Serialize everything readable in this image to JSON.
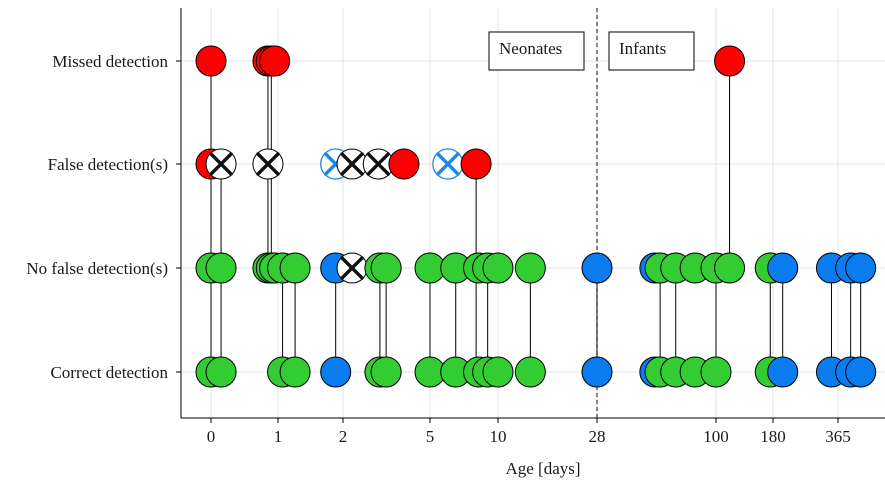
{
  "chart_data": {
    "type": "scatter",
    "title": "",
    "xlabel": "Age [days]",
    "ylabel": "",
    "x_scale": "pseudo-log",
    "x_ticks": [
      "0",
      "1",
      "2",
      "5",
      "10",
      "28",
      "100",
      "180",
      "365"
    ],
    "categories": [
      "Missed detection",
      "False detection(s)",
      "No false detection(s)",
      "Correct detection"
    ],
    "legend": "none",
    "grid": true,
    "colors": {
      "red": "#ff0000",
      "green": "#33cc33",
      "blue": "#0a7cf0",
      "white": "#ffffff",
      "cross": "#111111",
      "blue_cross": "#1e88e5"
    },
    "annotations": [
      {
        "text": "Neonates"
      },
      {
        "text": "Infants"
      }
    ],
    "reference_line": {
      "x": 28,
      "style": "dashed"
    },
    "points": [
      {
        "x": 0,
        "category": "Missed detection",
        "color": "red"
      },
      {
        "x": 0.85,
        "category": "Missed detection",
        "color": "red"
      },
      {
        "x": 0.9,
        "category": "Missed detection",
        "color": "red"
      },
      {
        "x": 0.95,
        "category": "Missed detection",
        "color": "red"
      },
      {
        "x": 115,
        "category": "Missed detection",
        "color": "red"
      },
      {
        "x": 0,
        "category": "False detection(s)",
        "color": "red"
      },
      {
        "x": 0.15,
        "category": "False detection(s)",
        "color": "white",
        "marker": "cross"
      },
      {
        "x": 0.85,
        "category": "False detection(s)",
        "color": "white",
        "marker": "cross"
      },
      {
        "x": 1.85,
        "category": "False detection(s)",
        "color": "white",
        "marker": "blue-cross"
      },
      {
        "x": 2.2,
        "category": "False detection(s)",
        "color": "white",
        "marker": "cross"
      },
      {
        "x": 2.9,
        "category": "False detection(s)",
        "color": "white",
        "marker": "cross"
      },
      {
        "x": 3.8,
        "category": "False detection(s)",
        "color": "red"
      },
      {
        "x": 6,
        "category": "False detection(s)",
        "color": "white",
        "marker": "blue-cross"
      },
      {
        "x": 8,
        "category": "False detection(s)",
        "color": "red"
      },
      {
        "x": 0,
        "category": "No false detection(s)",
        "color": "green"
      },
      {
        "x": 0.15,
        "category": "No false detection(s)",
        "color": "green"
      },
      {
        "x": 0.85,
        "category": "No false detection(s)",
        "color": "green"
      },
      {
        "x": 0.9,
        "category": "No false detection(s)",
        "color": "green"
      },
      {
        "x": 0.95,
        "category": "No false detection(s)",
        "color": "green"
      },
      {
        "x": 1.05,
        "category": "No false detection(s)",
        "color": "green"
      },
      {
        "x": 1.2,
        "category": "No false detection(s)",
        "color": "green"
      },
      {
        "x": 1.85,
        "category": "No false detection(s)",
        "color": "blue"
      },
      {
        "x": 2.2,
        "category": "No false detection(s)",
        "color": "white",
        "marker": "cross"
      },
      {
        "x": 2.95,
        "category": "No false detection(s)",
        "color": "green"
      },
      {
        "x": 3.15,
        "category": "No false detection(s)",
        "color": "green"
      },
      {
        "x": 5,
        "category": "No false detection(s)",
        "color": "green"
      },
      {
        "x": 6.5,
        "category": "No false detection(s)",
        "color": "green"
      },
      {
        "x": 8.2,
        "category": "No false detection(s)",
        "color": "green"
      },
      {
        "x": 9,
        "category": "No false detection(s)",
        "color": "green"
      },
      {
        "x": 10,
        "category": "No false detection(s)",
        "color": "green"
      },
      {
        "x": 14,
        "category": "No false detection(s)",
        "color": "green"
      },
      {
        "x": 28,
        "category": "No false detection(s)",
        "color": "blue"
      },
      {
        "x": 52,
        "category": "No false detection(s)",
        "color": "blue"
      },
      {
        "x": 55,
        "category": "No false detection(s)",
        "color": "green"
      },
      {
        "x": 65,
        "category": "No false detection(s)",
        "color": "green"
      },
      {
        "x": 80,
        "category": "No false detection(s)",
        "color": "green"
      },
      {
        "x": 100,
        "category": "No false detection(s)",
        "color": "green"
      },
      {
        "x": 115,
        "category": "No false detection(s)",
        "color": "green"
      },
      {
        "x": 175,
        "category": "No false detection(s)",
        "color": "green"
      },
      {
        "x": 200,
        "category": "No false detection(s)",
        "color": "blue"
      },
      {
        "x": 340,
        "category": "No false detection(s)",
        "color": "blue"
      },
      {
        "x": 400,
        "category": "No false detection(s)",
        "color": "blue"
      },
      {
        "x": 430,
        "category": "No false detection(s)",
        "color": "blue"
      },
      {
        "x": 0,
        "category": "Correct detection",
        "color": "green"
      },
      {
        "x": 0.15,
        "category": "Correct detection",
        "color": "green"
      },
      {
        "x": 1.05,
        "category": "Correct detection",
        "color": "green"
      },
      {
        "x": 1.2,
        "category": "Correct detection",
        "color": "green"
      },
      {
        "x": 1.85,
        "category": "Correct detection",
        "color": "blue"
      },
      {
        "x": 2.95,
        "category": "Correct detection",
        "color": "green"
      },
      {
        "x": 3.15,
        "category": "Correct detection",
        "color": "green"
      },
      {
        "x": 5,
        "category": "Correct detection",
        "color": "green"
      },
      {
        "x": 6.5,
        "category": "Correct detection",
        "color": "green"
      },
      {
        "x": 8.2,
        "category": "Correct detection",
        "color": "green"
      },
      {
        "x": 9,
        "category": "Correct detection",
        "color": "green"
      },
      {
        "x": 10,
        "category": "Correct detection",
        "color": "green"
      },
      {
        "x": 14,
        "category": "Correct detection",
        "color": "green"
      },
      {
        "x": 28,
        "category": "Correct detection",
        "color": "blue"
      },
      {
        "x": 52,
        "category": "Correct detection",
        "color": "blue"
      },
      {
        "x": 55,
        "category": "Correct detection",
        "color": "green"
      },
      {
        "x": 65,
        "category": "Correct detection",
        "color": "green"
      },
      {
        "x": 80,
        "category": "Correct detection",
        "color": "green"
      },
      {
        "x": 100,
        "category": "Correct detection",
        "color": "green"
      },
      {
        "x": 175,
        "category": "Correct detection",
        "color": "green"
      },
      {
        "x": 200,
        "category": "Correct detection",
        "color": "blue"
      },
      {
        "x": 340,
        "category": "Correct detection",
        "color": "blue"
      },
      {
        "x": 400,
        "category": "Correct detection",
        "color": "blue"
      },
      {
        "x": 430,
        "category": "Correct detection",
        "color": "blue"
      }
    ],
    "connections": [
      {
        "x": 0,
        "from": "Missed detection",
        "to": "Correct detection"
      },
      {
        "x": 0.15,
        "from": "False detection(s)",
        "to": "Correct detection"
      },
      {
        "x": 0.85,
        "from": "Missed detection",
        "to": "No false detection(s)"
      },
      {
        "x": 0.9,
        "from": "Missed detection",
        "to": "No false detection(s)"
      },
      {
        "x": 1.05,
        "from": "No false detection(s)",
        "to": "Correct detection"
      },
      {
        "x": 1.2,
        "from": "No false detection(s)",
        "to": "Correct detection"
      },
      {
        "x": 1.85,
        "from": "No false detection(s)",
        "to": "Correct detection"
      },
      {
        "x": 2.95,
        "from": "No false detection(s)",
        "to": "Correct detection"
      },
      {
        "x": 3.15,
        "from": "No false detection(s)",
        "to": "Correct detection"
      },
      {
        "x": 5,
        "from": "No false detection(s)",
        "to": "Correct detection"
      },
      {
        "x": 6.5,
        "from": "No false detection(s)",
        "to": "Correct detection"
      },
      {
        "x": 8,
        "from": "False detection(s)",
        "to": "Correct detection"
      },
      {
        "x": 9,
        "from": "No false detection(s)",
        "to": "Correct detection"
      },
      {
        "x": 14,
        "from": "No false detection(s)",
        "to": "Correct detection"
      },
      {
        "x": 28,
        "from": "No false detection(s)",
        "to": "Correct detection"
      },
      {
        "x": 55,
        "from": "No false detection(s)",
        "to": "Correct detection"
      },
      {
        "x": 65,
        "from": "No false detection(s)",
        "to": "Correct detection"
      },
      {
        "x": 100,
        "from": "No false detection(s)",
        "to": "Correct detection"
      },
      {
        "x": 115,
        "from": "Missed detection",
        "to": "No false detection(s)"
      },
      {
        "x": 175,
        "from": "No false detection(s)",
        "to": "Correct detection"
      },
      {
        "x": 200,
        "from": "No false detection(s)",
        "to": "Correct detection"
      },
      {
        "x": 340,
        "from": "No false detection(s)",
        "to": "Correct detection"
      },
      {
        "x": 400,
        "from": "No false detection(s)",
        "to": "Correct detection"
      },
      {
        "x": 430,
        "from": "No false detection(s)",
        "to": "Correct detection"
      }
    ]
  }
}
